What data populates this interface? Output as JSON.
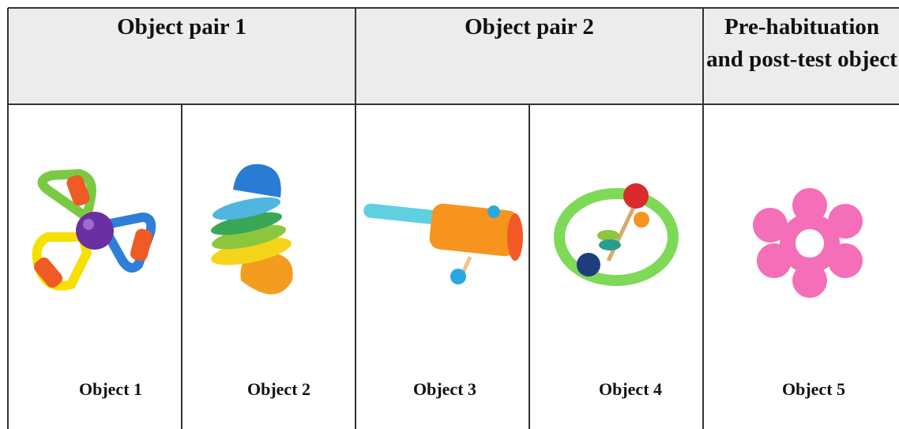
{
  "header": {
    "columns": [
      "Object pair 1",
      "Object pair 2",
      "Pre-habituation and post-test object"
    ]
  },
  "objects": [
    "Object 1",
    "Object 2",
    "Object 3",
    "Object 4",
    "Object 5"
  ]
}
